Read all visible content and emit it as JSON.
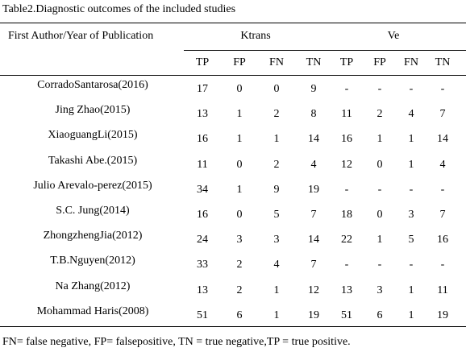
{
  "table": {
    "title": "Table2.Diagnostic outcomes of the included studies",
    "header": {
      "author": "First Author/Year of Publication",
      "groups": [
        "Ktrans",
        "Ve"
      ],
      "columns": [
        "TP",
        "FP",
        "FN",
        "TN",
        "TP",
        "FP",
        "FN",
        "TN"
      ]
    },
    "rows": [
      [
        "CorradoSantarosa(2016)",
        17,
        0,
        0,
        9,
        "-",
        "-",
        "-",
        "-"
      ],
      [
        "Jing Zhao(2015)",
        13,
        1,
        2,
        8,
        11,
        2,
        4,
        7
      ],
      [
        "XiaoguangLi(2015)",
        16,
        1,
        1,
        14,
        16,
        1,
        1,
        14
      ],
      [
        "Takashi Abe.(2015)",
        11,
        0,
        2,
        4,
        12,
        0,
        1,
        4
      ],
      [
        "Julio Arevalo-perez(2015)",
        34,
        1,
        9,
        19,
        "-",
        "-",
        "-",
        "-"
      ],
      [
        "S.C. Jung(2014)",
        16,
        0,
        5,
        7,
        18,
        0,
        3,
        7
      ],
      [
        "ZhongzhengJia(2012)",
        24,
        3,
        3,
        14,
        22,
        1,
        5,
        16
      ],
      [
        "T.B.Nguyen(2012)",
        33,
        2,
        4,
        7,
        "-",
        "-",
        "-",
        "-"
      ],
      [
        "Na Zhang(2012)",
        13,
        2,
        1,
        12,
        13,
        3,
        1,
        11
      ],
      [
        "Mohammad Haris(2008)",
        51,
        6,
        1,
        19,
        51,
        6,
        1,
        19
      ]
    ],
    "footnote": "FN= false negative, FP= falsepositive, TN = true negative,TP = true positive."
  }
}
